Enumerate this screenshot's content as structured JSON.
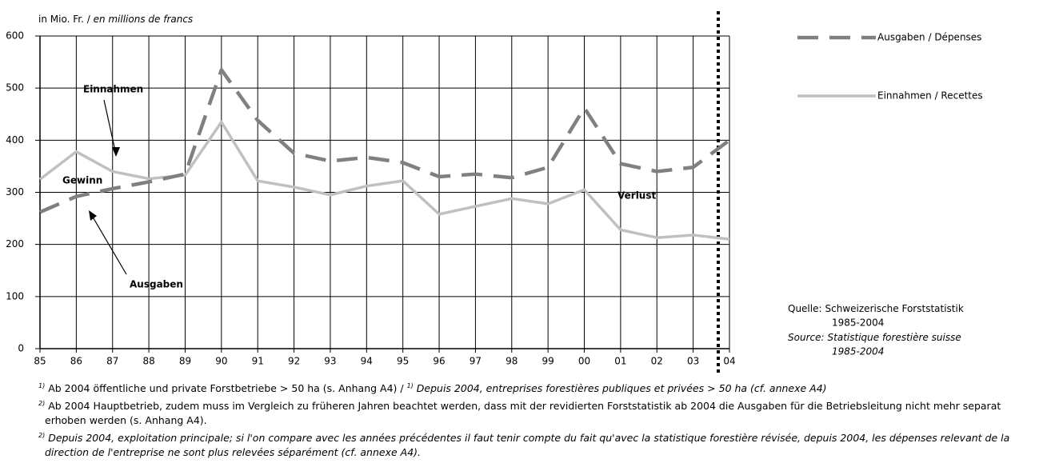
{
  "chart_data": {
    "type": "line",
    "y_label": "in Mio. Fr. /",
    "y_label_italic": "en millions de francs",
    "categories": [
      "85",
      "86",
      "87",
      "88",
      "89",
      "90",
      "91",
      "92",
      "93",
      "94",
      "95",
      "96",
      "97",
      "98",
      "99",
      "00",
      "01",
      "02",
      "03",
      "04"
    ],
    "series": [
      {
        "name": "Ausgaben / Dépenses",
        "color": "#808080",
        "dashed": true,
        "values": [
          262,
          292,
          307,
          320,
          335,
          535,
          438,
          375,
          360,
          367,
          357,
          330,
          335,
          328,
          348,
          462,
          355,
          340,
          348,
          400
        ]
      },
      {
        "name": "Einnahmen / Recettes",
        "color": "#c0c0c0",
        "dashed": false,
        "values": [
          325,
          378,
          340,
          326,
          333,
          435,
          322,
          310,
          295,
          312,
          322,
          258,
          273,
          288,
          278,
          305,
          228,
          213,
          218,
          210
        ]
      }
    ],
    "ylim": [
      0,
      600
    ],
    "yticks": [
      0,
      100,
      200,
      300,
      400,
      500,
      600
    ],
    "grid": true,
    "annotations": [
      "Einnahmen",
      "Gewinn",
      "Verlust",
      "Ausgaben"
    ],
    "source": [
      [
        "Quelle:",
        "Schweizerische Forststatistik",
        "1985-2004"
      ],
      [
        "Source:",
        "Statistique forestière suisse",
        "1985-2004"
      ]
    ],
    "notes": [
      {
        "marker": "1)",
        "text": "Ab 2004 öffentliche und private Forstbetriebe > 50 ha (s. Anhang A4) /",
        "marker_fr": "1)",
        "text_fr": "Depuis 2004, entreprises forestières publiques et privées > 50 ha (cf. annexe A4)"
      },
      {
        "marker": "2)",
        "text": "Ab 2004 Hauptbetrieb, zudem muss im Vergleich zu früheren Jahren beachtet werden, dass mit der revidierten Forststatistik ab  2004 die Ausgaben für die Betriebsleitung nicht mehr  separat erhoben werden (s. Anhang A4)."
      },
      {
        "marker": "2)",
        "text_fr": "Depuis 2004, exploitation principale; si l'on compare avec les années précédentes il faut tenir compte du fait qu'avec la statistique forestière révisée, depuis 2004, les dépenses relevant de la direction de l'entreprise ne sont plus relevées séparément (cf. annexe A4)."
      }
    ]
  }
}
